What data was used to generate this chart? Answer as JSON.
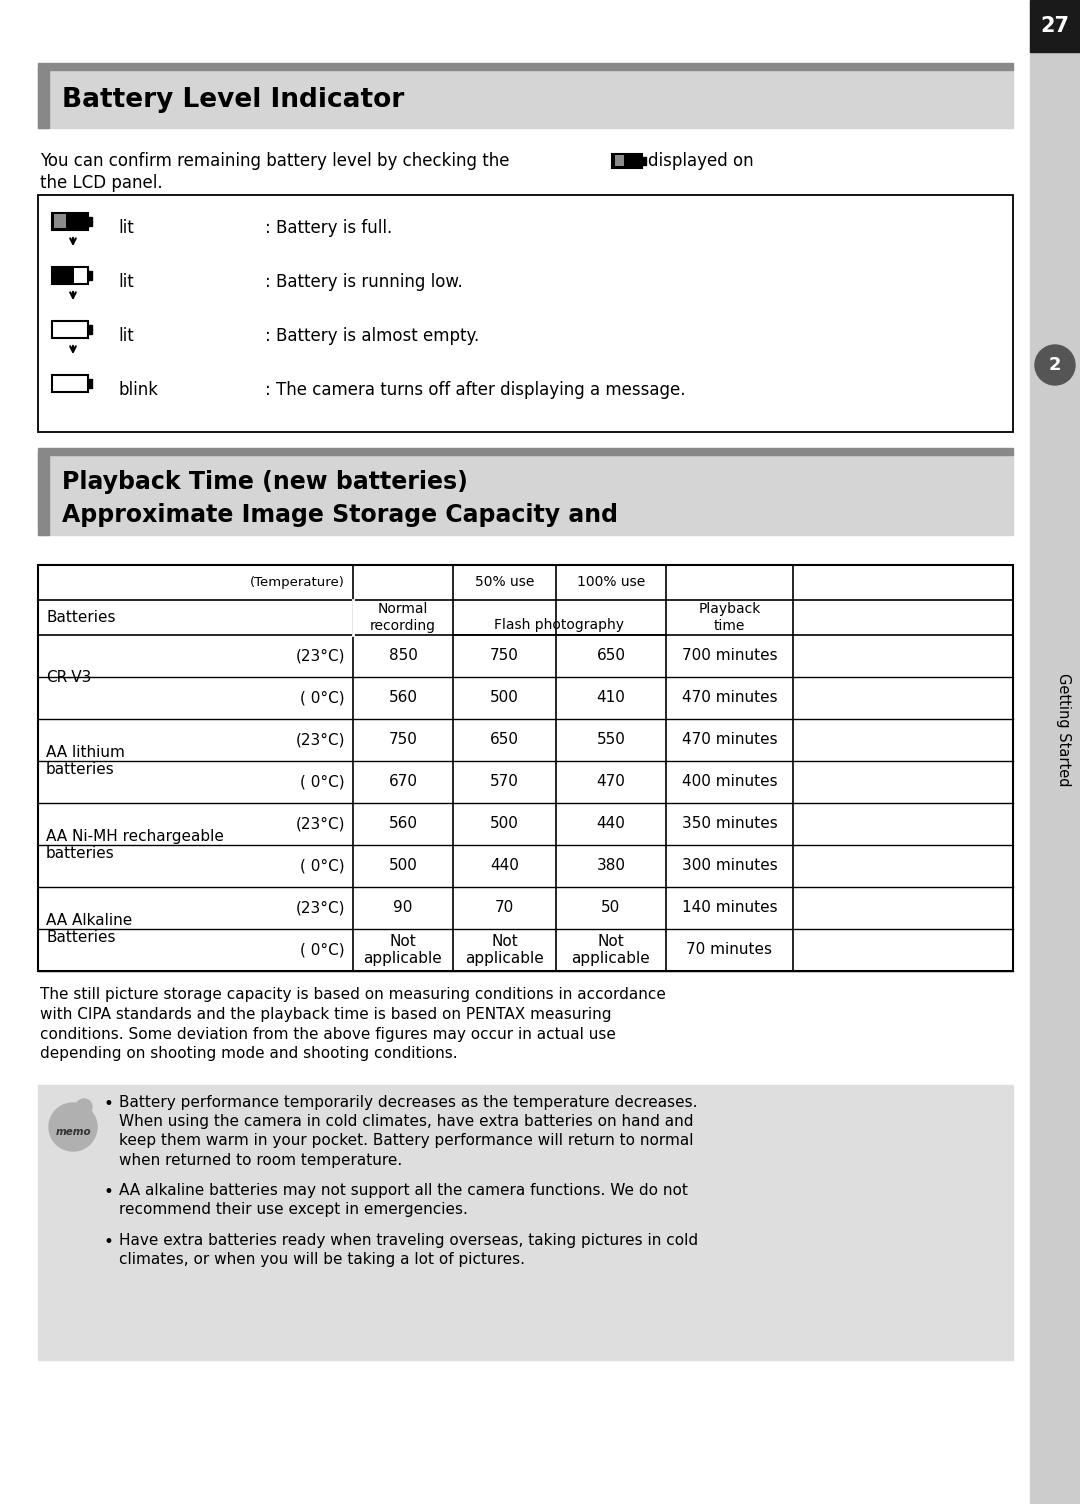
{
  "page_number": "27",
  "section1_title": "Battery Level Indicator",
  "intro_line1": "You can confirm remaining battery level by checking the",
  "intro_line2": "displayed on",
  "intro_line3": "the LCD panel.",
  "battery_indicators": [
    {
      "level": "full",
      "action": "lit",
      "desc": ": Battery is full."
    },
    {
      "level": "low",
      "action": "lit",
      "desc": ": Battery is running low."
    },
    {
      "level": "empty",
      "action": "lit",
      "desc": ": Battery is almost empty."
    },
    {
      "level": "empty",
      "action": "blink",
      "desc": ": The camera turns off after displaying a message."
    }
  ],
  "section2_title_line1": "Approximate Image Storage Capacity and",
  "section2_title_line2": "Playback Time (new batteries)",
  "table_data": [
    [
      "CR-V3",
      "(23°C)",
      "850",
      "750",
      "650",
      "700 minutes"
    ],
    [
      "CR-V3",
      "( 0°C)",
      "560",
      "500",
      "410",
      "470 minutes"
    ],
    [
      "AA lithium\nbatteries",
      "(23°C)",
      "750",
      "650",
      "550",
      "470 minutes"
    ],
    [
      "AA lithium\nbatteries",
      "( 0°C)",
      "670",
      "570",
      "470",
      "400 minutes"
    ],
    [
      "AA Ni-MH rechargeable\nbatteries",
      "(23°C)",
      "560",
      "500",
      "440",
      "350 minutes"
    ],
    [
      "AA Ni-MH rechargeable\nbatteries",
      "( 0°C)",
      "500",
      "440",
      "380",
      "300 minutes"
    ],
    [
      "AA Alkaline\nBatteries",
      "(23°C)",
      "90",
      "70",
      "50",
      "140 minutes"
    ],
    [
      "AA Alkaline\nBatteries",
      "( 0°C)",
      "Not\napplicable",
      "Not\napplicable",
      "Not\napplicable",
      "70 minutes"
    ]
  ],
  "battery_groups": [
    {
      "name": "CR-V3",
      "row_indices": [
        0,
        1
      ]
    },
    {
      "name": "AA lithium\nbatteries",
      "row_indices": [
        2,
        3
      ]
    },
    {
      "name": "AA Ni-MH rechargeable\nbatteries",
      "row_indices": [
        4,
        5
      ]
    },
    {
      "name": "AA Alkaline\nBatteries",
      "row_indices": [
        6,
        7
      ]
    }
  ],
  "footnote": "The still picture storage capacity is based on measuring conditions in accordance\nwith CIPA standards and the playback time is based on PENTAX measuring\nconditions. Some deviation from the above figures may occur in actual use\ndepending on shooting mode and shooting conditions.",
  "memo_bullets": [
    "Battery performance temporarily decreases as the temperature decreases.\nWhen using the camera in cold climates, have extra batteries on hand and\nkeep them warm in your pocket. Battery performance will return to normal\nwhen returned to room temperature.",
    "AA alkaline batteries may not support all the camera functions. We do not\nrecommend their use except in emergencies.",
    "Have extra batteries ready when traveling overseas, taking pictures in cold\nclimates, or when you will be taking a lot of pictures."
  ],
  "bg_color": "#ffffff",
  "sidebar_bg": "#cccccc",
  "sidebar_dark": "#1a1a1a",
  "header_bar_bg": "#d5d5d5",
  "header_bar_accent": "#888888",
  "memo_bg": "#dedede"
}
